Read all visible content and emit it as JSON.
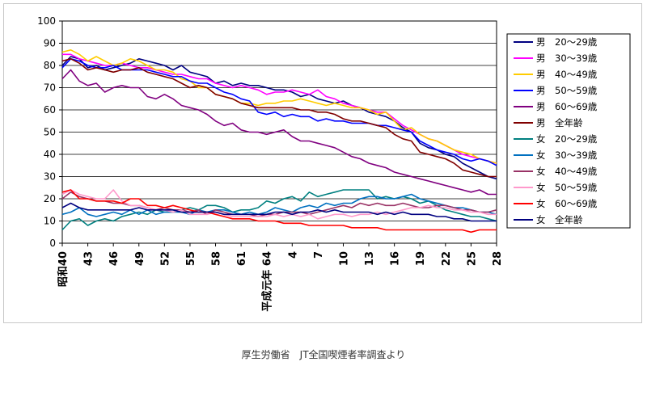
{
  "source_text": "厚生労働省　JT全国喫煙者率調査より",
  "chart_data": {
    "type": "line",
    "title": "",
    "xlabel": "",
    "ylabel": "",
    "ylim": [
      0,
      100
    ],
    "yticks": [
      0,
      10,
      20,
      30,
      40,
      50,
      60,
      70,
      80,
      90,
      100
    ],
    "grid": "horizontal",
    "legend_position": "right",
    "x_tick_labels": [
      "昭和40",
      "43",
      "46",
      "49",
      "52",
      "55",
      "58",
      "61",
      "平成元年 64",
      "4",
      "7",
      "10",
      "13",
      "16",
      "19",
      "22",
      "25",
      "28"
    ],
    "x_tick_years": [
      1965,
      1968,
      1971,
      1974,
      1977,
      1980,
      1983,
      1986,
      1989,
      1992,
      1995,
      1998,
      2001,
      2004,
      2007,
      2010,
      2013,
      2016
    ],
    "x": [
      1965,
      1966,
      1967,
      1968,
      1969,
      1970,
      1971,
      1972,
      1973,
      1974,
      1975,
      1976,
      1977,
      1978,
      1979,
      1980,
      1981,
      1982,
      1983,
      1984,
      1985,
      1986,
      1987,
      1988,
      1989,
      1990,
      1991,
      1992,
      1993,
      1994,
      1995,
      1996,
      1997,
      1998,
      1999,
      2000,
      2001,
      2002,
      2003,
      2004,
      2005,
      2006,
      2007,
      2008,
      2009,
      2010,
      2011,
      2012,
      2013,
      2014,
      2015,
      2016
    ],
    "series": [
      {
        "name": "男　20〜29歳",
        "color": "#000080",
        "values": [
          80,
          84,
          83,
          79,
          80,
          78,
          79,
          80,
          81,
          83,
          82,
          81,
          80,
          78,
          80,
          77,
          76,
          75,
          72,
          73,
          71,
          72,
          71,
          71,
          70,
          69,
          69,
          68,
          66,
          67,
          65,
          64,
          63,
          64,
          62,
          61,
          59,
          58,
          57,
          55,
          52,
          50,
          45,
          43,
          42,
          40,
          39,
          36,
          34,
          32,
          30,
          29
        ]
      },
      {
        "name": "男　30〜39歳",
        "color": "#ff00ff",
        "values": [
          85,
          85,
          83,
          82,
          81,
          80,
          80,
          81,
          80,
          79,
          79,
          78,
          77,
          76,
          76,
          75,
          74,
          74,
          72,
          71,
          70,
          71,
          70,
          69,
          67,
          68,
          68,
          69,
          68,
          67,
          69,
          66,
          65,
          63,
          62,
          61,
          60,
          59,
          59,
          56,
          53,
          51,
          49,
          47,
          46,
          44,
          42,
          40,
          39,
          38,
          37,
          36
        ]
      },
      {
        "name": "男　40〜49歳",
        "color": "#ffcc00",
        "values": [
          86,
          87,
          85,
          82,
          84,
          82,
          80,
          81,
          83,
          82,
          80,
          78,
          78,
          77,
          74,
          73,
          70,
          70,
          67,
          66,
          65,
          63,
          63,
          62,
          63,
          63,
          64,
          64,
          65,
          64,
          63,
          62,
          63,
          62,
          61,
          61,
          60,
          58,
          59,
          55,
          51,
          52,
          49,
          47,
          46,
          44,
          42,
          41,
          40,
          38,
          37,
          36
        ]
      },
      {
        "name": "男　50〜59歳",
        "color": "#0000ff",
        "values": [
          79,
          83,
          82,
          80,
          79,
          79,
          80,
          78,
          78,
          78,
          78,
          77,
          76,
          75,
          75,
          73,
          72,
          72,
          70,
          68,
          67,
          65,
          64,
          59,
          58,
          59,
          57,
          58,
          57,
          57,
          55,
          56,
          55,
          55,
          54,
          54,
          54,
          53,
          53,
          52,
          51,
          50,
          46,
          44,
          42,
          41,
          40,
          38,
          37,
          38,
          37,
          35
        ]
      },
      {
        "name": "男　60〜69歳",
        "color": "#800080",
        "values": [
          74,
          78,
          73,
          71,
          72,
          68,
          70,
          71,
          70,
          70,
          66,
          65,
          67,
          65,
          62,
          61,
          60,
          58,
          55,
          53,
          54,
          51,
          50,
          50,
          49,
          50,
          51,
          48,
          46,
          46,
          45,
          44,
          43,
          41,
          39,
          38,
          36,
          35,
          34,
          32,
          31,
          30,
          29,
          28,
          27,
          26,
          25,
          24,
          23,
          24,
          22,
          22
        ]
      },
      {
        "name": "男　全年齢",
        "color": "#800000",
        "values": [
          82,
          83,
          81,
          78,
          79,
          78,
          77,
          78,
          78,
          79,
          77,
          76,
          75,
          74,
          72,
          70,
          71,
          70,
          67,
          66,
          65,
          63,
          62,
          61,
          61,
          61,
          61,
          61,
          60,
          60,
          59,
          59,
          58,
          56,
          55,
          55,
          54,
          53,
          52,
          49,
          47,
          46,
          41,
          40,
          39,
          38,
          36,
          33,
          32,
          31,
          30,
          30
        ]
      },
      {
        "name": "女　20〜29歳",
        "color": "#008080",
        "values": [
          6,
          10,
          11,
          8,
          10,
          11,
          10,
          12,
          13,
          14,
          13,
          15,
          14,
          14,
          15,
          16,
          15,
          17,
          17,
          16,
          14,
          15,
          15,
          16,
          19,
          18,
          20,
          21,
          19,
          23,
          21,
          22,
          23,
          24,
          24,
          24,
          24,
          20,
          21,
          20,
          21,
          20,
          18,
          19,
          17,
          15,
          14,
          13,
          12,
          12,
          11,
          10
        ]
      },
      {
        "name": "女　30〜39歳",
        "color": "#0070c0",
        "values": [
          13,
          14,
          16,
          13,
          12,
          13,
          14,
          13,
          15,
          13,
          15,
          13,
          14,
          14,
          14,
          13,
          15,
          14,
          15,
          15,
          14,
          13,
          14,
          13,
          14,
          16,
          15,
          14,
          16,
          17,
          16,
          18,
          17,
          18,
          18,
          20,
          21,
          21,
          20,
          20,
          21,
          22,
          20,
          19,
          18,
          17,
          16,
          16,
          15,
          14,
          14,
          13
        ]
      },
      {
        "name": "女　40〜49歳",
        "color": "#993366",
        "values": [
          20,
          23,
          21,
          20,
          19,
          19,
          18,
          18,
          17,
          17,
          16,
          15,
          16,
          15,
          15,
          14,
          15,
          13,
          15,
          14,
          13,
          13,
          13,
          12,
          13,
          13,
          14,
          14,
          14,
          13,
          14,
          15,
          16,
          17,
          16,
          18,
          17,
          18,
          17,
          17,
          18,
          17,
          16,
          16,
          17,
          17,
          16,
          15,
          15,
          14,
          14,
          15
        ]
      },
      {
        "name": "女　50〜59歳",
        "color": "#ff99cc",
        "values": [
          22,
          24,
          22,
          21,
          20,
          20,
          24,
          19,
          17,
          17,
          16,
          15,
          15,
          14,
          15,
          13,
          13,
          13,
          14,
          13,
          12,
          12,
          12,
          12,
          12,
          13,
          12,
          13,
          12,
          13,
          11,
          12,
          13,
          13,
          12,
          13,
          13,
          14,
          13,
          14,
          15,
          16,
          16,
          17,
          16,
          16,
          15,
          15,
          14,
          14,
          13,
          13
        ]
      },
      {
        "name": "女　60〜69歳",
        "color": "#ff0000",
        "values": [
          23,
          24,
          20,
          20,
          19,
          19,
          19,
          18,
          20,
          20,
          17,
          17,
          16,
          17,
          16,
          15,
          14,
          14,
          13,
          12,
          11,
          11,
          11,
          10,
          10,
          10,
          9,
          9,
          9,
          8,
          8,
          8,
          8,
          8,
          7,
          7,
          7,
          7,
          6,
          6,
          6,
          6,
          6,
          6,
          6,
          6,
          6,
          6,
          5,
          6,
          6,
          6
        ]
      },
      {
        "name": "女　全年齢",
        "color": "#000080",
        "values": [
          16,
          18,
          16,
          15,
          15,
          15,
          15,
          15,
          15,
          16,
          15,
          15,
          15,
          15,
          14,
          14,
          14,
          14,
          14,
          13,
          13,
          13,
          13,
          13,
          13,
          14,
          14,
          13,
          14,
          14,
          15,
          14,
          15,
          14,
          14,
          14,
          14,
          13,
          14,
          13,
          14,
          13,
          13,
          13,
          12,
          12,
          11,
          11,
          10,
          10,
          10,
          10
        ]
      }
    ]
  }
}
